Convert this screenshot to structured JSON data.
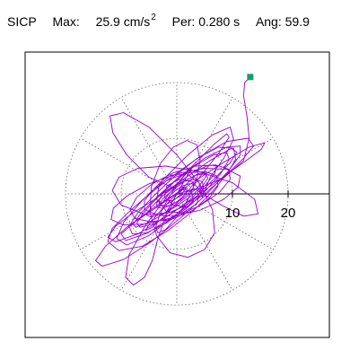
{
  "header": {
    "label": "SICP",
    "max_label": "Max:",
    "max_value": "25.9",
    "max_unit": "cm/s",
    "max_unit_sup": "2",
    "per_label": "Per:",
    "per_value": "0.280 s",
    "ang_label": "Ang:",
    "ang_value": "59.9"
  },
  "chart_data": {
    "type": "scatter",
    "description_units": "acceleration orbit, cm/s^2",
    "axis_range": [
      0,
      25.9
    ],
    "radial_rings": [
      10,
      20
    ],
    "radial_tick_labels": [
      "10",
      "20"
    ],
    "grid": true,
    "grid_style": "dotted polar",
    "radial_spoke_step_deg": 30,
    "series_color": "#9400d3",
    "end_marker": {
      "x": 13.2,
      "y": 21.0,
      "color": "#1a9a70"
    },
    "polyline": [
      [
        0.0,
        0.0
      ],
      [
        1.2,
        0.8
      ],
      [
        2.6,
        0.4
      ],
      [
        3.0,
        -1.2
      ],
      [
        1.8,
        -2.4
      ],
      [
        -0.6,
        -2.0
      ],
      [
        -2.2,
        -0.6
      ],
      [
        -1.8,
        1.4
      ],
      [
        0.4,
        2.6
      ],
      [
        2.8,
        2.2
      ],
      [
        4.2,
        0.6
      ],
      [
        3.6,
        -1.8
      ],
      [
        1.0,
        -3.4
      ],
      [
        -1.8,
        -3.2
      ],
      [
        -3.6,
        -1.0
      ],
      [
        -3.2,
        1.6
      ],
      [
        -1.0,
        3.4
      ],
      [
        1.8,
        3.6
      ],
      [
        4.0,
        2.0
      ],
      [
        4.6,
        -0.6
      ],
      [
        6.0,
        3.0
      ],
      [
        8.5,
        6.5
      ],
      [
        10.2,
        9.8
      ],
      [
        9.6,
        12.0
      ],
      [
        6.4,
        10.6
      ],
      [
        2.0,
        7.0
      ],
      [
        -2.5,
        2.5
      ],
      [
        -6.5,
        -1.5
      ],
      [
        -9.5,
        -5.0
      ],
      [
        -10.8,
        -8.0
      ],
      [
        -9.0,
        -9.2
      ],
      [
        -5.0,
        -7.5
      ],
      [
        -0.5,
        -4.0
      ],
      [
        3.5,
        -0.5
      ],
      [
        7.0,
        3.0
      ],
      [
        9.5,
        5.5
      ],
      [
        10.8,
        7.5
      ],
      [
        9.8,
        8.2
      ],
      [
        6.0,
        6.0
      ],
      [
        1.0,
        2.5
      ],
      [
        -4.0,
        -1.0
      ],
      [
        -8.0,
        -3.5
      ],
      [
        -11.0,
        -5.8
      ],
      [
        -12.4,
        -7.8
      ],
      [
        -11.0,
        -8.6
      ],
      [
        -7.0,
        -7.2
      ],
      [
        -2.0,
        -4.2
      ],
      [
        3.0,
        -0.8
      ],
      [
        8.0,
        2.8
      ],
      [
        12.5,
        6.0
      ],
      [
        15.2,
        8.0
      ],
      [
        15.8,
        9.2
      ],
      [
        13.0,
        8.4
      ],
      [
        8.0,
        5.4
      ],
      [
        2.5,
        1.8
      ],
      [
        -3.0,
        -2.0
      ],
      [
        -7.5,
        -5.0
      ],
      [
        -10.0,
        -7.2
      ],
      [
        -9.2,
        -8.4
      ],
      [
        -5.2,
        -7.0
      ],
      [
        0.0,
        -3.6
      ],
      [
        5.0,
        0.0
      ],
      [
        9.0,
        3.5
      ],
      [
        12.0,
        6.4
      ],
      [
        13.8,
        8.6
      ],
      [
        12.8,
        10.0
      ],
      [
        9.0,
        9.4
      ],
      [
        4.0,
        6.6
      ],
      [
        -1.0,
        3.0
      ],
      [
        -5.5,
        -0.5
      ],
      [
        -9.0,
        -3.6
      ],
      [
        -11.6,
        -6.2
      ],
      [
        -12.4,
        -8.6
      ],
      [
        -10.4,
        -10.2
      ],
      [
        -6.2,
        -9.4
      ],
      [
        -1.6,
        -6.6
      ],
      [
        2.8,
        -3.2
      ],
      [
        6.4,
        0.4
      ],
      [
        9.0,
        3.6
      ],
      [
        10.6,
        6.2
      ],
      [
        10.2,
        8.2
      ],
      [
        7.4,
        8.4
      ],
      [
        3.4,
        6.2
      ],
      [
        -0.6,
        3.0
      ],
      [
        -4.2,
        -0.4
      ],
      [
        -7.0,
        -3.4
      ],
      [
        -8.6,
        -5.8
      ],
      [
        -8.0,
        -7.2
      ],
      [
        -5.4,
        -7.0
      ],
      [
        -1.8,
        -5.2
      ],
      [
        2.0,
        -2.4
      ],
      [
        5.4,
        0.8
      ],
      [
        8.0,
        3.8
      ],
      [
        9.4,
        6.2
      ],
      [
        9.0,
        7.4
      ],
      [
        6.6,
        7.0
      ],
      [
        3.2,
        5.0
      ],
      [
        -0.4,
        2.2
      ],
      [
        -3.6,
        -0.8
      ],
      [
        -6.0,
        -3.4
      ],
      [
        -7.2,
        -5.2
      ],
      [
        -6.6,
        -6.0
      ],
      [
        -4.2,
        -5.4
      ],
      [
        -1.0,
        -3.6
      ],
      [
        2.2,
        -1.2
      ],
      [
        5.0,
        1.4
      ],
      [
        6.8,
        3.6
      ],
      [
        7.2,
        5.0
      ],
      [
        5.8,
        5.2
      ],
      [
        3.2,
        4.0
      ],
      [
        0.2,
        2.0
      ],
      [
        -2.6,
        -0.4
      ],
      [
        -4.6,
        -2.4
      ],
      [
        -5.4,
        -3.8
      ],
      [
        -4.6,
        -4.2
      ],
      [
        -2.6,
        -3.6
      ],
      [
        0.0,
        -2.2
      ],
      [
        2.6,
        -0.4
      ],
      [
        4.6,
        1.4
      ],
      [
        5.6,
        2.8
      ],
      [
        5.2,
        3.6
      ],
      [
        3.6,
        3.4
      ],
      [
        1.4,
        2.4
      ],
      [
        -0.8,
        1.0
      ],
      [
        -2.6,
        -0.4
      ],
      [
        -3.6,
        -1.6
      ],
      [
        -3.6,
        -2.4
      ],
      [
        -2.6,
        -2.6
      ],
      [
        -1.0,
        -2.0
      ],
      [
        0.8,
        -1.0
      ],
      [
        2.2,
        0.2
      ],
      [
        3.0,
        1.2
      ],
      [
        3.0,
        1.8
      ],
      [
        2.2,
        1.8
      ],
      [
        1.0,
        1.4
      ],
      [
        -0.2,
        0.6
      ],
      [
        -1.2,
        -0.2
      ],
      [
        -1.6,
        -0.8
      ],
      [
        -1.4,
        -1.2
      ],
      [
        -0.8,
        -1.2
      ],
      [
        3.0,
        1.0
      ],
      [
        8.0,
        -2.0
      ],
      [
        12.0,
        -4.0
      ],
      [
        14.6,
        -3.6
      ],
      [
        14.0,
        -1.0
      ],
      [
        10.0,
        2.0
      ],
      [
        4.0,
        4.0
      ],
      [
        -2.0,
        5.0
      ],
      [
        -7.0,
        4.6
      ],
      [
        -10.4,
        3.0
      ],
      [
        -11.6,
        0.6
      ],
      [
        -10.0,
        -2.0
      ],
      [
        -6.0,
        -3.6
      ],
      [
        -1.0,
        -4.0
      ],
      [
        4.0,
        -3.0
      ],
      [
        8.4,
        -1.0
      ],
      [
        11.0,
        1.2
      ],
      [
        11.4,
        3.2
      ],
      [
        9.0,
        4.4
      ],
      [
        5.0,
        4.6
      ],
      [
        0.0,
        3.6
      ],
      [
        -5.0,
        1.8
      ],
      [
        -9.0,
        -0.4
      ],
      [
        -11.4,
        -2.6
      ],
      [
        -11.8,
        -4.6
      ],
      [
        -9.6,
        -5.6
      ],
      [
        -5.4,
        -5.4
      ],
      [
        -0.6,
        -4.2
      ],
      [
        4.0,
        -2.2
      ],
      [
        7.6,
        0.2
      ],
      [
        9.6,
        2.6
      ],
      [
        9.4,
        4.4
      ],
      [
        7.0,
        5.2
      ],
      [
        3.4,
        5.0
      ],
      [
        -0.6,
        3.8
      ],
      [
        -4.4,
        1.8
      ],
      [
        -7.2,
        -0.6
      ],
      [
        -8.4,
        -2.8
      ],
      [
        -7.6,
        -4.4
      ],
      [
        -4.8,
        -5.0
      ],
      [
        -1.0,
        -4.6
      ],
      [
        2.8,
        -3.0
      ],
      [
        5.8,
        -0.8
      ],
      [
        7.4,
        1.4
      ],
      [
        7.2,
        3.2
      ],
      [
        5.2,
        4.0
      ],
      [
        2.0,
        3.8
      ],
      [
        -1.4,
        2.6
      ],
      [
        -4.2,
        0.8
      ],
      [
        -5.8,
        -1.2
      ],
      [
        -5.8,
        -2.8
      ],
      [
        -4.0,
        -3.6
      ],
      [
        -1.4,
        -3.4
      ],
      [
        1.4,
        -2.2
      ],
      [
        3.6,
        -0.6
      ],
      [
        4.8,
        1.0
      ],
      [
        4.6,
        2.2
      ],
      [
        3.2,
        2.6
      ],
      [
        1.0,
        2.2
      ],
      [
        -1.0,
        1.2
      ],
      [
        -2.6,
        0.0
      ],
      [
        -3.2,
        -1.2
      ],
      [
        -2.8,
        -2.0
      ],
      [
        -1.6,
        -2.2
      ],
      [
        -0.2,
        -1.6
      ],
      [
        1.0,
        -0.6
      ],
      [
        1.8,
        0.4
      ],
      [
        1.8,
        1.0
      ],
      [
        1.0,
        1.2
      ],
      [
        0.0,
        0.8
      ],
      [
        -5.0,
        3.0
      ],
      [
        -9.0,
        7.0
      ],
      [
        -11.5,
        11.0
      ],
      [
        -12.0,
        14.0
      ],
      [
        -9.6,
        14.6
      ],
      [
        -5.0,
        12.0
      ],
      [
        0.0,
        7.0
      ],
      [
        4.0,
        2.0
      ],
      [
        6.4,
        -2.8
      ],
      [
        6.8,
        -7.0
      ],
      [
        5.0,
        -10.0
      ],
      [
        2.0,
        -11.4
      ],
      [
        -1.2,
        -10.6
      ],
      [
        -3.6,
        -7.6
      ],
      [
        -4.8,
        -3.4
      ],
      [
        -4.6,
        1.2
      ],
      [
        -3.0,
        5.4
      ],
      [
        -0.6,
        8.4
      ],
      [
        1.8,
        9.6
      ],
      [
        3.6,
        8.8
      ],
      [
        4.2,
        6.2
      ],
      [
        3.6,
        2.6
      ],
      [
        2.0,
        -1.0
      ],
      [
        0.0,
        -4.2
      ],
      [
        -2.0,
        -6.4
      ],
      [
        -3.4,
        -7.0
      ],
      [
        -3.8,
        -6.0
      ],
      [
        -3.0,
        -3.6
      ],
      [
        -1.4,
        -0.6
      ],
      [
        0.4,
        2.2
      ],
      [
        2.0,
        4.2
      ],
      [
        2.8,
        5.0
      ],
      [
        2.6,
        4.4
      ],
      [
        1.6,
        2.8
      ],
      [
        0.4,
        0.6
      ],
      [
        -0.8,
        -1.4
      ],
      [
        -1.6,
        -2.8
      ],
      [
        -1.8,
        -3.2
      ],
      [
        -1.2,
        -2.6
      ],
      [
        -0.4,
        -1.4
      ],
      [
        -2.0,
        -4.0
      ],
      [
        -3.4,
        -8.0
      ],
      [
        -4.4,
        -12.0
      ],
      [
        -5.8,
        -15.0
      ],
      [
        -7.8,
        -16.4
      ],
      [
        -9.2,
        -15.0
      ],
      [
        -8.6,
        -11.0
      ],
      [
        -5.6,
        -5.6
      ],
      [
        -1.4,
        0.0
      ],
      [
        3.0,
        5.2
      ],
      [
        6.8,
        9.0
      ],
      [
        9.0,
        10.8
      ],
      [
        9.4,
        10.2
      ],
      [
        7.6,
        7.4
      ],
      [
        4.6,
        3.6
      ],
      [
        1.2,
        -0.4
      ],
      [
        -2.0,
        -3.8
      ],
      [
        -4.4,
        -6.0
      ],
      [
        -5.6,
        -6.6
      ],
      [
        -5.2,
        -5.8
      ],
      [
        -3.6,
        -3.8
      ],
      [
        -1.4,
        -1.4
      ],
      [
        0.8,
        0.8
      ],
      [
        2.4,
        2.4
      ],
      [
        3.0,
        3.0
      ],
      [
        2.6,
        2.6
      ],
      [
        1.6,
        1.6
      ],
      [
        0.4,
        0.4
      ],
      [
        -4.0,
        -2.4
      ],
      [
        -9.0,
        -6.0
      ],
      [
        -12.8,
        -9.4
      ],
      [
        -14.6,
        -12.0
      ],
      [
        -13.4,
        -13.0
      ],
      [
        -9.6,
        -11.8
      ],
      [
        -4.6,
        -8.6
      ],
      [
        0.6,
        -4.4
      ],
      [
        5.4,
        0.0
      ],
      [
        9.2,
        4.0
      ],
      [
        11.4,
        7.0
      ],
      [
        11.4,
        8.6
      ],
      [
        9.0,
        8.4
      ],
      [
        5.0,
        6.4
      ],
      [
        0.6,
        3.2
      ],
      [
        -3.4,
        -0.4
      ],
      [
        -6.4,
        -3.4
      ],
      [
        -7.8,
        -5.4
      ],
      [
        -7.4,
        -6.0
      ],
      [
        -5.2,
        -5.2
      ],
      [
        -2.0,
        -3.4
      ],
      [
        1.2,
        -1.0
      ],
      [
        3.8,
        1.2
      ],
      [
        5.2,
        3.0
      ],
      [
        5.2,
        3.8
      ],
      [
        3.8,
        3.6
      ],
      [
        1.6,
        2.4
      ],
      [
        -0.6,
        0.8
      ],
      [
        -2.4,
        -0.8
      ],
      [
        -3.2,
        -1.8
      ],
      [
        -3.0,
        -2.2
      ],
      [
        -2.0,
        -2.0
      ],
      [
        -0.6,
        -1.2
      ],
      [
        0.6,
        -0.2
      ],
      [
        1.4,
        0.6
      ],
      [
        1.6,
        1.0
      ],
      [
        1.2,
        1.0
      ],
      [
        0.4,
        0.6
      ],
      [
        0.0,
        0.0
      ],
      [
        4.0,
        1.0
      ],
      [
        8.6,
        3.0
      ],
      [
        12.0,
        6.0
      ],
      [
        13.0,
        10.0
      ],
      [
        12.6,
        14.0
      ],
      [
        12.0,
        17.6
      ],
      [
        12.2,
        20.0
      ],
      [
        13.2,
        21.0
      ]
    ]
  }
}
